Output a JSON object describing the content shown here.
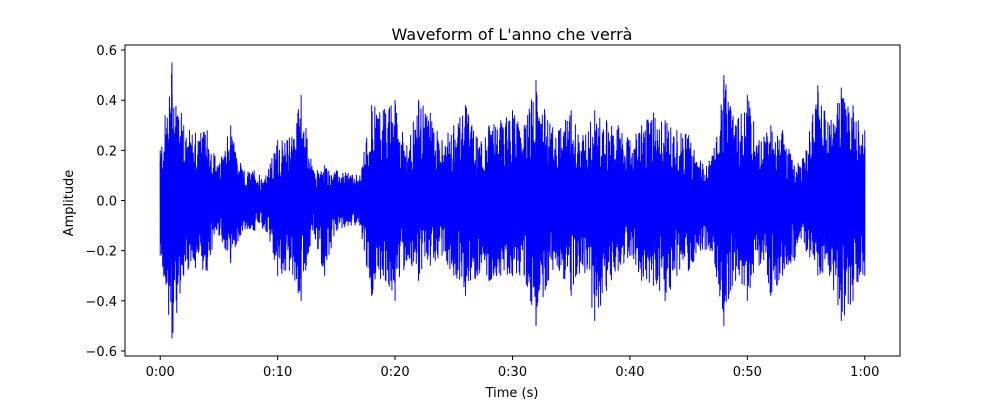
{
  "chart_data": {
    "type": "line",
    "title": "Waveform of L'anno che verrà",
    "xlabel": "Time (s)",
    "ylabel": "Amplitude",
    "xlim": [
      -3,
      63
    ],
    "ylim": [
      -0.62,
      0.62
    ],
    "grid": false,
    "legend": "none",
    "series_color": "#0000ff",
    "x_ticks": [
      {
        "value": 0,
        "label": "0:00"
      },
      {
        "value": 10,
        "label": "0:10"
      },
      {
        "value": 20,
        "label": "0:20"
      },
      {
        "value": 30,
        "label": "0:30"
      },
      {
        "value": 40,
        "label": "0:40"
      },
      {
        "value": 50,
        "label": "0:50"
      },
      {
        "value": 60,
        "label": "1:00"
      }
    ],
    "y_ticks": [
      {
        "value": 0.6,
        "label": "0.6"
      },
      {
        "value": 0.4,
        "label": "0.4"
      },
      {
        "value": 0.2,
        "label": "0.2"
      },
      {
        "value": 0.0,
        "label": "0.0"
      },
      {
        "value": -0.2,
        "label": "−0.2"
      },
      {
        "value": -0.4,
        "label": "−0.4"
      },
      {
        "value": -0.6,
        "label": "−0.6"
      }
    ],
    "envelope": {
      "time": [
        0,
        1,
        2,
        3,
        4,
        5,
        6,
        7,
        8,
        9,
        10,
        11,
        12,
        13,
        14,
        15,
        16,
        17,
        18,
        19,
        20,
        21,
        22,
        23,
        24,
        25,
        26,
        27,
        28,
        29,
        30,
        31,
        32,
        33,
        34,
        35,
        36,
        37,
        38,
        39,
        40,
        41,
        42,
        43,
        44,
        45,
        46,
        47,
        48,
        49,
        50,
        51,
        52,
        53,
        54,
        55,
        56,
        57,
        58,
        59,
        60
      ],
      "max": [
        0.2,
        0.55,
        0.3,
        0.27,
        0.28,
        0.14,
        0.3,
        0.12,
        0.12,
        0.1,
        0.24,
        0.25,
        0.42,
        0.12,
        0.14,
        0.12,
        0.11,
        0.1,
        0.38,
        0.36,
        0.4,
        0.22,
        0.4,
        0.35,
        0.24,
        0.3,
        0.38,
        0.25,
        0.3,
        0.32,
        0.36,
        0.3,
        0.48,
        0.32,
        0.28,
        0.36,
        0.26,
        0.36,
        0.32,
        0.3,
        0.24,
        0.3,
        0.35,
        0.32,
        0.28,
        0.26,
        0.16,
        0.18,
        0.5,
        0.3,
        0.42,
        0.24,
        0.3,
        0.28,
        0.14,
        0.2,
        0.46,
        0.3,
        0.45,
        0.38,
        0.28
      ],
      "min": [
        -0.22,
        -0.55,
        -0.3,
        -0.27,
        -0.28,
        -0.14,
        -0.25,
        -0.12,
        -0.12,
        -0.12,
        -0.3,
        -0.28,
        -0.4,
        -0.12,
        -0.3,
        -0.12,
        -0.1,
        -0.1,
        -0.38,
        -0.3,
        -0.4,
        -0.24,
        -0.32,
        -0.26,
        -0.22,
        -0.3,
        -0.38,
        -0.3,
        -0.32,
        -0.3,
        -0.3,
        -0.3,
        -0.5,
        -0.32,
        -0.28,
        -0.38,
        -0.26,
        -0.48,
        -0.36,
        -0.28,
        -0.22,
        -0.32,
        -0.34,
        -0.4,
        -0.3,
        -0.28,
        -0.2,
        -0.2,
        -0.5,
        -0.32,
        -0.4,
        -0.26,
        -0.38,
        -0.3,
        -0.24,
        -0.2,
        -0.3,
        -0.3,
        -0.48,
        -0.4,
        -0.3
      ]
    }
  }
}
